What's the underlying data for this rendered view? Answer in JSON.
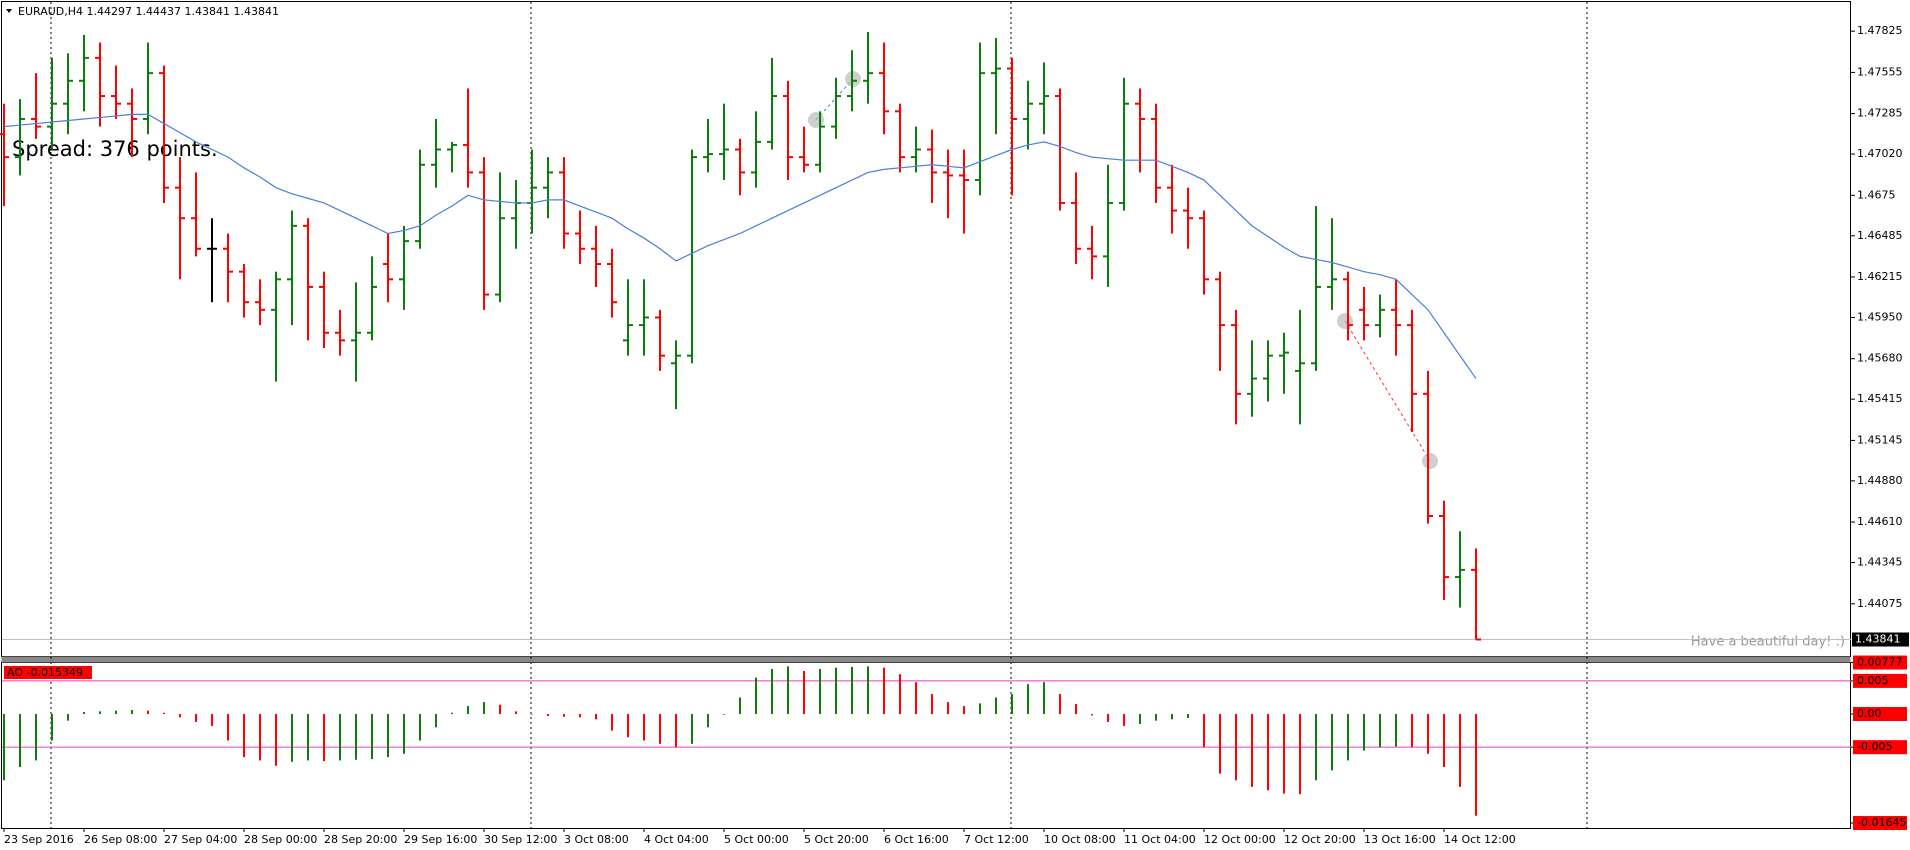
{
  "chart_data": [
    {
      "type": "ohlc",
      "title": "EURAUD,H4  1.44297 1.44437 1.43841 1.43841",
      "annotations": [
        "Spread: 376 points.",
        "Have a beautiful day! :)"
      ],
      "up_color": "#0a7d0a",
      "down_color": "#ff0000",
      "flat_color": "#000000",
      "ylim": [
        1.43733,
        1.48016
      ],
      "yticks": [
        1.47825,
        1.47555,
        1.47285,
        {
          "value": 1.4702,
          "label": "1.47020"
        },
        1.4675,
        1.46485,
        1.46215,
        {
          "value": 1.4595,
          "label": "1.45950"
        },
        {
          "value": 1.4568,
          "label": "1.45680"
        },
        1.45415,
        1.45145,
        {
          "value": 1.4488,
          "label": "1.44880"
        },
        {
          "value": 1.4461,
          "label": "1.44610"
        },
        1.44345,
        1.44075
      ],
      "price_label": 1.43841,
      "x_labels": [
        "23 Sep 2016",
        "26 Sep 08:00",
        "27 Sep 04:00",
        "28 Sep 00:00",
        "28 Sep 20:00",
        "29 Sep 16:00",
        "30 Sep 12:00",
        "3 Oct 08:00",
        "4 Oct 04:00",
        "5 Oct 00:00",
        "5 Oct 20:00",
        "6 Oct 16:00",
        "7 Oct 12:00",
        "10 Oct 08:00",
        "11 Oct 04:00",
        "12 Oct 00:00",
        "12 Oct 20:00",
        "13 Oct 16:00",
        "14 Oct 12:00"
      ],
      "ohlc": [
        [
          1.4715,
          1.4735,
          1.4668,
          1.47
        ],
        [
          1.47,
          1.4738,
          1.4688,
          1.4725
        ],
        [
          1.4725,
          1.4755,
          1.4712,
          1.472
        ],
        [
          1.472,
          1.4765,
          1.4705,
          1.4735
        ],
        [
          1.4735,
          1.4768,
          1.4715,
          1.475
        ],
        [
          1.475,
          1.478,
          1.473,
          1.4765
        ],
        [
          1.4765,
          1.4775,
          1.472,
          1.474
        ],
        [
          1.474,
          1.476,
          1.4725,
          1.4735
        ],
        [
          1.4735,
          1.4745,
          1.47,
          1.4725
        ],
        [
          1.4725,
          1.4775,
          1.4715,
          1.4755
        ],
        [
          1.4755,
          1.476,
          1.467,
          1.468
        ],
        [
          1.468,
          1.47,
          1.462,
          1.466
        ],
        [
          1.466,
          1.469,
          1.4635,
          1.464
        ],
        [
          1.464,
          1.466,
          1.4605,
          1.464
        ],
        [
          1.464,
          1.465,
          1.4605,
          1.4625
        ],
        [
          1.4625,
          1.463,
          1.4595,
          1.4605
        ],
        [
          1.4605,
          1.462,
          1.459,
          1.46
        ],
        [
          1.46,
          1.4625,
          1.4553,
          1.462
        ],
        [
          1.462,
          1.4665,
          1.459,
          1.4655
        ],
        [
          1.4655,
          1.466,
          1.458,
          1.4615
        ],
        [
          1.4615,
          1.4625,
          1.4575,
          1.4585
        ],
        [
          1.4585,
          1.46,
          1.457,
          1.458
        ],
        [
          1.458,
          1.4618,
          1.4553,
          1.4585
        ],
        [
          1.4585,
          1.4635,
          1.458,
          1.4615
        ],
        [
          1.463,
          1.465,
          1.4605,
          1.462
        ],
        [
          1.462,
          1.4655,
          1.46,
          1.4645
        ],
        [
          1.4645,
          1.4705,
          1.464,
          1.4695
        ],
        [
          1.4695,
          1.4725,
          1.468,
          1.4705
        ],
        [
          1.4705,
          1.471,
          1.469,
          1.4708
        ],
        [
          1.4708,
          1.4745,
          1.468,
          1.469
        ],
        [
          1.469,
          1.47,
          1.46,
          1.461
        ],
        [
          1.461,
          1.469,
          1.4605,
          1.466
        ],
        [
          1.466,
          1.4685,
          1.464,
          1.467
        ],
        [
          1.467,
          1.4705,
          1.465,
          1.468
        ],
        [
          1.468,
          1.47,
          1.466,
          1.469
        ],
        [
          1.469,
          1.47,
          1.464,
          1.465
        ],
        [
          1.465,
          1.4665,
          1.463,
          1.464
        ],
        [
          1.464,
          1.4655,
          1.4615,
          1.463
        ],
        [
          1.463,
          1.464,
          1.4595,
          1.4605
        ],
        [
          1.458,
          1.462,
          1.457,
          1.459
        ],
        [
          1.459,
          1.462,
          1.457,
          1.4595
        ],
        [
          1.4595,
          1.46,
          1.456,
          1.457
        ],
        [
          1.4565,
          1.458,
          1.4535,
          1.457
        ],
        [
          1.457,
          1.4705,
          1.4565,
          1.47
        ],
        [
          1.47,
          1.4725,
          1.469,
          1.4702
        ],
        [
          1.4702,
          1.4735,
          1.4685,
          1.4705
        ],
        [
          1.4705,
          1.4712,
          1.4675,
          1.469
        ],
        [
          1.469,
          1.473,
          1.468,
          1.471
        ],
        [
          1.471,
          1.4765,
          1.4705,
          1.474
        ],
        [
          1.474,
          1.475,
          1.4685,
          1.47
        ],
        [
          1.47,
          1.472,
          1.469,
          1.4695
        ],
        [
          1.4695,
          1.473,
          1.469,
          1.472
        ],
        [
          1.472,
          1.4752,
          1.4712,
          1.474
        ],
        [
          1.474,
          1.477,
          1.473,
          1.475
        ],
        [
          1.475,
          1.4782,
          1.4735,
          1.4755
        ],
        [
          1.4755,
          1.4775,
          1.4715,
          1.473
        ],
        [
          1.473,
          1.4735,
          1.469,
          1.47
        ],
        [
          1.47,
          1.472,
          1.469,
          1.4705
        ],
        [
          1.4705,
          1.4718,
          1.467,
          1.469
        ],
        [
          1.469,
          1.4705,
          1.466,
          1.4688
        ],
        [
          1.4688,
          1.4705,
          1.465,
          1.4685
        ],
        [
          1.4685,
          1.4775,
          1.4675,
          1.4755
        ],
        [
          1.4755,
          1.4778,
          1.4715,
          1.4758
        ],
        [
          1.4758,
          1.4765,
          1.4675,
          1.4725
        ],
        [
          1.4725,
          1.475,
          1.4705,
          1.4735
        ],
        [
          1.4735,
          1.4762,
          1.4715,
          1.474
        ],
        [
          1.474,
          1.4745,
          1.4665,
          1.467
        ],
        [
          1.467,
          1.469,
          1.463,
          1.464
        ],
        [
          1.464,
          1.4655,
          1.462,
          1.4635
        ],
        [
          1.4635,
          1.4695,
          1.4615,
          1.467
        ],
        [
          1.467,
          1.4752,
          1.4665,
          1.4735
        ],
        [
          1.4735,
          1.4745,
          1.469,
          1.4725
        ],
        [
          1.4725,
          1.4735,
          1.467,
          1.468
        ],
        [
          1.468,
          1.4695,
          1.465,
          1.4665
        ],
        [
          1.4665,
          1.468,
          1.464,
          1.466
        ],
        [
          1.466,
          1.4665,
          1.461,
          1.462
        ],
        [
          1.462,
          1.4625,
          1.456,
          1.459
        ],
        [
          1.459,
          1.46,
          1.4525,
          1.4545
        ],
        [
          1.4545,
          1.458,
          1.453,
          1.4555
        ],
        [
          1.4555,
          1.458,
          1.454,
          1.457
        ],
        [
          1.457,
          1.4585,
          1.4545,
          1.4572
        ],
        [
          1.456,
          1.46,
          1.4525,
          1.4565
        ],
        [
          1.4565,
          1.4668,
          1.456,
          1.4615
        ],
        [
          1.4615,
          1.466,
          1.46,
          1.462
        ],
        [
          1.462,
          1.4625,
          1.458,
          1.459
        ],
        [
          1.46,
          1.4615,
          1.458,
          1.459
        ],
        [
          1.459,
          1.461,
          1.4582,
          1.46
        ],
        [
          1.46,
          1.462,
          1.457,
          1.459
        ],
        [
          1.459,
          1.46,
          1.452,
          1.4545
        ],
        [
          1.4545,
          1.456,
          1.446,
          1.4465
        ],
        [
          1.4465,
          1.4475,
          1.441,
          1.4425
        ],
        [
          1.4425,
          1.4455,
          1.4405,
          1.44297
        ],
        [
          1.44297,
          1.44437,
          1.43841,
          1.43841
        ]
      ],
      "ma": {
        "color": "#4a7fd8",
        "values": [
          1.472,
          1.4721,
          1.4722,
          1.4723,
          1.4724,
          1.4725,
          1.4726,
          1.4727,
          1.4728,
          1.4728,
          1.4722,
          1.4716,
          1.471,
          1.4705,
          1.47,
          1.4693,
          1.4687,
          1.468,
          1.4676,
          1.4673,
          1.467,
          1.4665,
          1.466,
          1.4655,
          1.465,
          1.4652,
          1.4655,
          1.4662,
          1.4668,
          1.4675,
          1.4672,
          1.4671,
          1.467,
          1.467,
          1.4672,
          1.4672,
          1.4668,
          1.4664,
          1.466,
          1.4653,
          1.4647,
          1.464,
          1.4632,
          1.4637,
          1.4642,
          1.4646,
          1.465,
          1.4655,
          1.466,
          1.4665,
          1.467,
          1.4675,
          1.468,
          1.4685,
          1.469,
          1.4692,
          1.4693,
          1.4694,
          1.4695,
          1.4694,
          1.4693,
          1.4697,
          1.4701,
          1.4705,
          1.4708,
          1.471,
          1.4707,
          1.4703,
          1.47,
          1.4699,
          1.4698,
          1.4698,
          1.4698,
          1.4694,
          1.469,
          1.4685,
          1.4675,
          1.4665,
          1.4655,
          1.4648,
          1.4641,
          1.4635,
          1.4633,
          1.4631,
          1.4628,
          1.4625,
          1.4623,
          1.462,
          1.461,
          1.46,
          1.4585,
          1.457,
          1.4555
        ]
      }
    },
    {
      "type": "bar",
      "title": "AO -0.015349",
      "up_color": "#0a7d0a",
      "down_color": "#ff0000",
      "level_color": "#e040c0",
      "ylim": [
        -0.0172,
        0.0077
      ],
      "yticks": [
        0.00777,
        0.005,
        {
          "value": 0,
          "label": "0.00"
        },
        -0.005,
        -0.01645
      ],
      "levels": [
        0.005,
        -0.005
      ],
      "values": [
        -0.01,
        -0.008,
        -0.007,
        -0.004,
        -0.001,
        0.0003,
        0.0004,
        0.0005,
        0.0006,
        0.0005,
        0.0002,
        -0.0005,
        -0.0012,
        -0.0018,
        -0.004,
        -0.0065,
        -0.007,
        -0.0078,
        -0.0072,
        -0.007,
        -0.0071,
        -0.007,
        -0.0069,
        -0.0068,
        -0.0065,
        -0.006,
        -0.004,
        -0.002,
        0.0002,
        0.0012,
        0.0018,
        0.0014,
        0.0004,
        0,
        -0.0003,
        -0.0004,
        -0.0005,
        -0.0008,
        -0.0025,
        -0.0035,
        -0.004,
        -0.0045,
        -0.005,
        -0.0045,
        -0.002,
        -0.0001,
        0.0025,
        0.0055,
        0.0068,
        0.0072,
        0.0065,
        0.0068,
        0.007,
        0.0071,
        0.0072,
        0.007,
        0.006,
        0.0048,
        0.003,
        0.0018,
        0.0012,
        0.0016,
        0.0025,
        0.003,
        0.0045,
        0.0048,
        0.003,
        0.0015,
        -0.0002,
        -0.0012,
        -0.0018,
        -0.0015,
        -0.001,
        -0.0008,
        -0.0006,
        -0.005,
        -0.009,
        -0.01,
        -0.011,
        -0.0115,
        -0.012,
        -0.0121,
        -0.01,
        -0.0085,
        -0.007,
        -0.0055,
        -0.005,
        -0.0049,
        -0.005,
        -0.006,
        -0.008,
        -0.011,
        -0.015349
      ]
    }
  ]
}
